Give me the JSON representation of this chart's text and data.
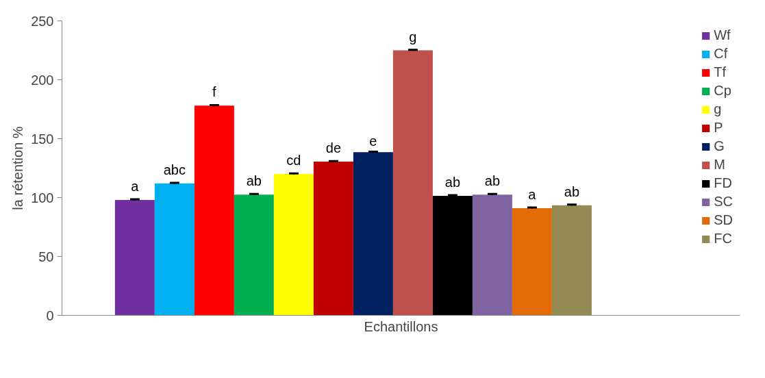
{
  "chart_data": {
    "type": "bar",
    "xlabel": "Echantillons",
    "ylabel": "la rétention %",
    "categories": [
      null
    ],
    "ylim": [
      0,
      250
    ],
    "yticks": [
      0,
      50,
      100,
      150,
      200,
      250
    ],
    "grid": false,
    "legend": "right",
    "series": [
      {
        "name": "Wf",
        "color": "#7030a0",
        "values": [
          98
        ],
        "errors": [
          0.5
        ],
        "value_labels": [
          "a"
        ]
      },
      {
        "name": "Cf",
        "color": "#00b0f0",
        "values": [
          112
        ],
        "errors": [
          0.5
        ],
        "value_labels": [
          "abc"
        ]
      },
      {
        "name": "Tf",
        "color": "#ff0000",
        "values": [
          178
        ],
        "errors": [
          0.5
        ],
        "value_labels": [
          "f"
        ]
      },
      {
        "name": "Cp",
        "color": "#00b050",
        "values": [
          102.5
        ],
        "errors": [
          0.5
        ],
        "value_labels": [
          "ab"
        ]
      },
      {
        "name": "g",
        "color": "#ffff00",
        "values": [
          120
        ],
        "errors": [
          0.5
        ],
        "value_labels": [
          "cd"
        ]
      },
      {
        "name": "P",
        "color": "#c00000",
        "values": [
          130.5
        ],
        "errors": [
          0.5
        ],
        "value_labels": [
          "de"
        ]
      },
      {
        "name": "G",
        "color": "#002060",
        "values": [
          138.5
        ],
        "errors": [
          0.5
        ],
        "value_labels": [
          "e"
        ]
      },
      {
        "name": "M",
        "color": "#c0504d",
        "values": [
          225
        ],
        "errors": [
          0.5
        ],
        "value_labels": [
          "g"
        ]
      },
      {
        "name": "FD",
        "color": "#000000",
        "values": [
          101.5
        ],
        "errors": [
          0.5
        ],
        "value_labels": [
          "ab"
        ]
      },
      {
        "name": "SC",
        "color": "#8064a2",
        "values": [
          102.5
        ],
        "errors": [
          0.5
        ],
        "value_labels": [
          "ab"
        ]
      },
      {
        "name": "SD",
        "color": "#e36c09",
        "values": [
          91
        ],
        "errors": [
          0.5
        ],
        "value_labels": [
          "a"
        ]
      },
      {
        "name": "FC",
        "color": "#948a54",
        "values": [
          93.5
        ],
        "errors": [
          0.5
        ],
        "value_labels": [
          "ab"
        ]
      }
    ]
  }
}
